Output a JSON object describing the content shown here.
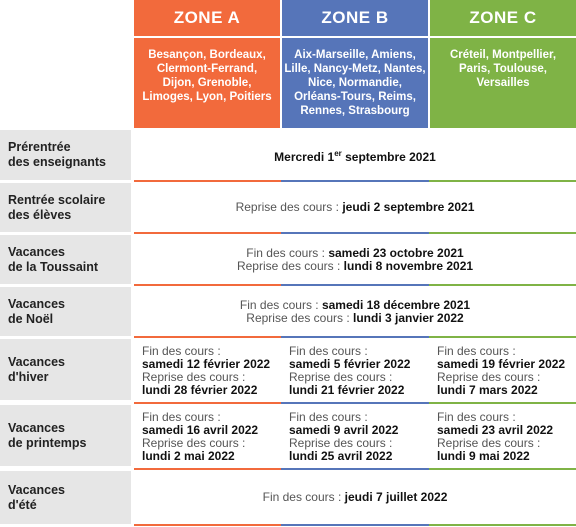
{
  "zones": [
    {
      "name": "ZONE A",
      "cities": [
        "Besançon, Bordeaux,",
        "Clermont-Ferrand,",
        "Dijon, Grenoble,",
        "Limoges, Lyon, Poitiers"
      ]
    },
    {
      "name": "ZONE B",
      "cities": [
        "Aix-Marseille, Amiens,",
        "Lille, Nancy-Metz, Nantes,",
        "Nice, Normandie,",
        "Orléans-Tours, Reims,",
        "Rennes, Strasbourg"
      ]
    },
    {
      "name": "ZONE C",
      "cities": [
        "Créteil, Montpellier,",
        "Paris, Toulouse,",
        "Versailles"
      ]
    }
  ],
  "rows": [
    {
      "label": [
        "Prérentrée",
        "des enseignants"
      ],
      "value": {
        "pre": "Mercredi 1",
        "sup": "er",
        "post": " septembre 2021"
      }
    },
    {
      "label": [
        "Rentrée scolaire",
        "des élèves"
      ],
      "prefix": "Reprise des cours : ",
      "value": "jeudi 2 septembre 2021"
    },
    {
      "label": [
        "Vacances",
        "de la Toussaint"
      ],
      "lines": [
        {
          "prefix": "Fin des cours : ",
          "value": "samedi 23 octobre 2021"
        },
        {
          "prefix": "Reprise des cours : ",
          "value": "lundi 8 novembre 2021"
        }
      ]
    },
    {
      "label": [
        "Vacances",
        "de Noël"
      ],
      "lines": [
        {
          "prefix": "Fin des cours : ",
          "value": "samedi 18 décembre 2021"
        },
        {
          "prefix": "Reprise des cours : ",
          "value": "lundi 3 janvier 2022"
        }
      ]
    },
    {
      "label": [
        "Vacances",
        "d'hiver"
      ],
      "zones": [
        {
          "end_label": "Fin des cours :",
          "end": "samedi 12 février 2022",
          "resume_label": "Reprise des cours :",
          "resume": "lundi 28 février 2022"
        },
        {
          "end_label": "Fin des cours :",
          "end": "samedi 5 février 2022",
          "resume_label": "Reprise des cours :",
          "resume": "lundi 21 février 2022"
        },
        {
          "end_label": "Fin des cours :",
          "end": "samedi 19 février 2022",
          "resume_label": "Reprise des cours :",
          "resume": "lundi 7 mars 2022"
        }
      ]
    },
    {
      "label": [
        "Vacances",
        "de printemps"
      ],
      "zones": [
        {
          "end_label": "Fin des cours :",
          "end": "samedi 16 avril 2022",
          "resume_label": "Reprise des cours :",
          "resume": "lundi 2 mai 2022"
        },
        {
          "end_label": "Fin des cours :",
          "end": "samedi 9 avril 2022",
          "resume_label": "Reprise des cours :",
          "resume": "lundi 25 avril 2022"
        },
        {
          "end_label": "Fin des cours :",
          "end": "samedi 23 avril 2022",
          "resume_label": "Reprise des cours :",
          "resume": "lundi 9 mai 2022"
        }
      ]
    },
    {
      "label": [
        "Vacances",
        "d'été"
      ],
      "prefix": "Fin des cours : ",
      "value": "jeudi 7 juillet 2022"
    }
  ],
  "colors": {
    "zone_a": "#f26a3c",
    "zone_b": "#5675b9",
    "zone_c": "#7fb346",
    "label_bg": "#e6e6e6"
  }
}
